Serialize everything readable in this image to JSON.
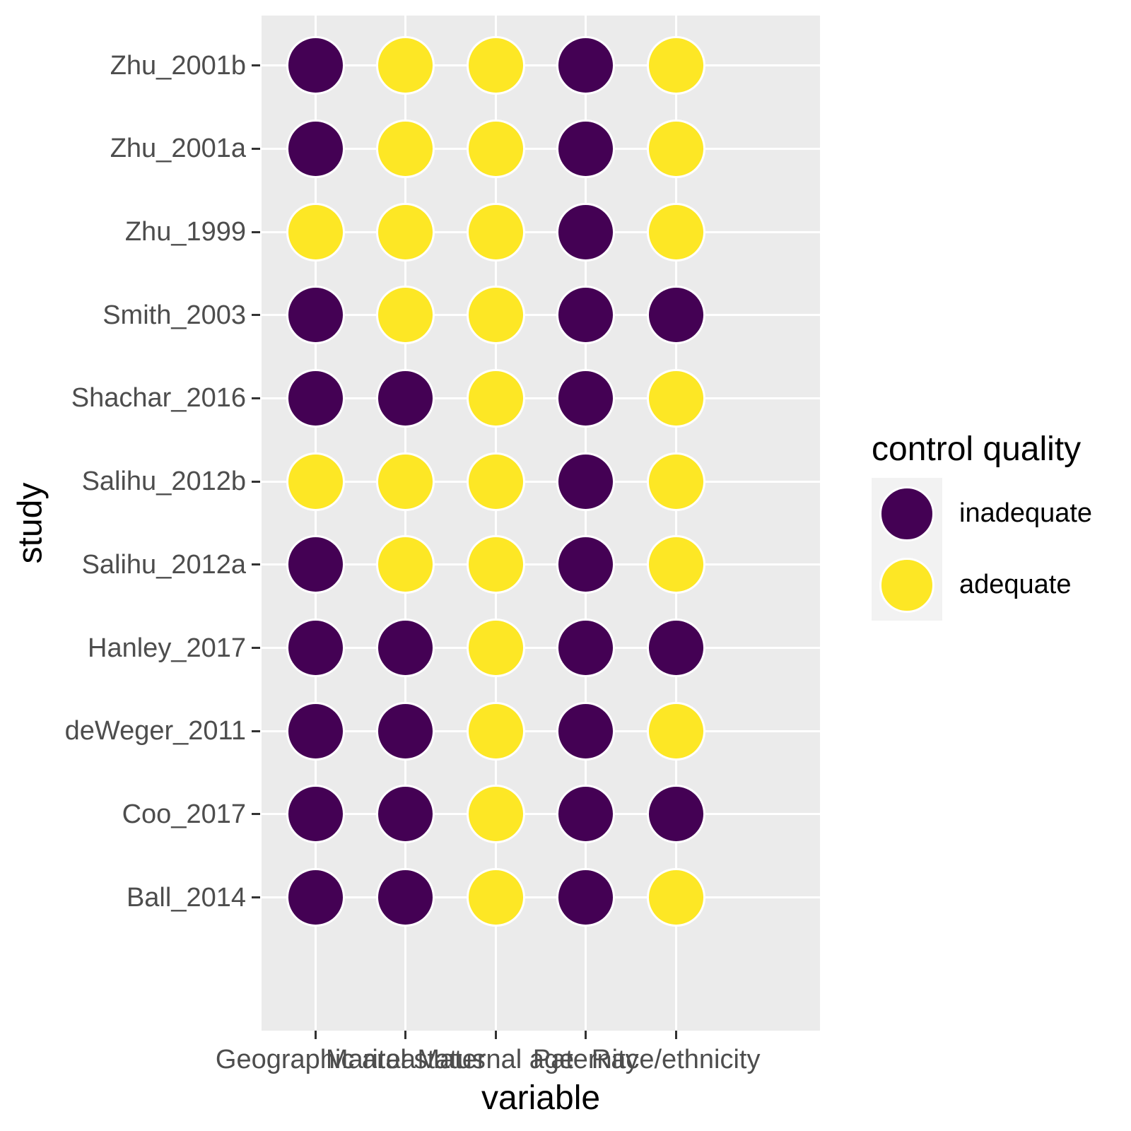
{
  "chart_data": {
    "type": "scatter",
    "subtype": "categorical-dot-matrix",
    "title": "",
    "xlabel": "variable",
    "ylabel": "study",
    "x_categories": [
      "Geographic area",
      "Marital status",
      "Maternal age",
      "Paternity",
      "Race/ethnicity"
    ],
    "y_categories": [
      "Zhu_2001b",
      "Zhu_2001a",
      "Zhu_1999",
      "Smith_2003",
      "Shachar_2016",
      "Salihu_2012b",
      "Salihu_2012a",
      "Hanley_2017",
      "deWeger_2011",
      "Coo_2017",
      "Ball_2014"
    ],
    "row_order": "top-to-bottom",
    "values": [
      [
        "inadequate",
        "adequate",
        "adequate",
        "inadequate",
        "adequate"
      ],
      [
        "inadequate",
        "adequate",
        "adequate",
        "inadequate",
        "adequate"
      ],
      [
        "adequate",
        "adequate",
        "adequate",
        "inadequate",
        "adequate"
      ],
      [
        "inadequate",
        "adequate",
        "adequate",
        "inadequate",
        "inadequate"
      ],
      [
        "inadequate",
        "inadequate",
        "adequate",
        "inadequate",
        "adequate"
      ],
      [
        "adequate",
        "adequate",
        "adequate",
        "inadequate",
        "adequate"
      ],
      [
        "inadequate",
        "adequate",
        "adequate",
        "inadequate",
        "adequate"
      ],
      [
        "inadequate",
        "inadequate",
        "adequate",
        "inadequate",
        "inadequate"
      ],
      [
        "inadequate",
        "inadequate",
        "adequate",
        "inadequate",
        "adequate"
      ],
      [
        "inadequate",
        "inadequate",
        "adequate",
        "inadequate",
        "inadequate"
      ],
      [
        "inadequate",
        "inadequate",
        "adequate",
        "inadequate",
        "adequate"
      ]
    ],
    "color_map": {
      "inadequate": "#440154",
      "adequate": "#FDE725"
    },
    "legend": {
      "title": "control quality",
      "position": "right",
      "items": [
        "inadequate",
        "adequate"
      ]
    },
    "grid": "major gridlines only, white lines on gray panel at category centers"
  },
  "colors": {
    "page_bg": "#ffffff",
    "panel_bg": "#ebebeb",
    "grid": "#ffffff",
    "tick": "#333333",
    "axis_text": "#4d4d4d",
    "axis_title": "#000000",
    "legend_key_bg": "#f2f2f2"
  }
}
